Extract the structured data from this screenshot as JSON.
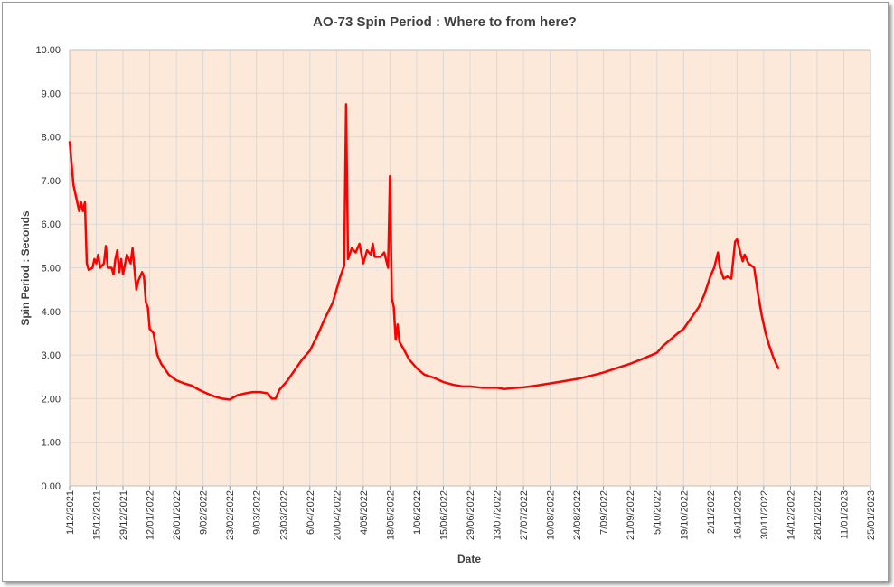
{
  "chart_data": {
    "type": "line",
    "title": "AO-73 Spin Period : Where to from here?",
    "xlabel": "Date",
    "ylabel": "Spin Period : Seconds",
    "x": [
      "1/12/2021",
      "3/12/2021",
      "5/12/2021",
      "6/12/2021",
      "7/12/2021",
      "8/12/2021",
      "9/12/2021",
      "10/12/2021",
      "11/12/2021",
      "13/12/2021",
      "14/12/2021",
      "15/12/2021",
      "16/12/2021",
      "17/12/2021",
      "19/12/2021",
      "20/12/2021",
      "21/12/2021",
      "23/12/2021",
      "24/12/2021",
      "25/12/2021",
      "26/12/2021",
      "27/12/2021",
      "28/12/2021",
      "29/12/2021",
      "31/12/2021",
      "2/01/2022",
      "3/01/2022",
      "5/01/2022",
      "6/01/2022",
      "8/01/2022",
      "9/01/2022",
      "10/01/2022",
      "11/01/2022",
      "12/01/2022",
      "14/01/2022",
      "16/01/2022",
      "18/01/2022",
      "22/01/2022",
      "26/01/2022",
      "30/01/2022",
      "3/02/2022",
      "7/02/2022",
      "11/02/2022",
      "15/02/2022",
      "19/02/2022",
      "23/02/2022",
      "27/02/2022",
      "3/03/2022",
      "7/03/2022",
      "11/03/2022",
      "15/03/2022",
      "17/03/2022",
      "19/03/2022",
      "21/03/2022",
      "25/03/2022",
      "29/03/2022",
      "2/04/2022",
      "6/04/2022",
      "10/04/2022",
      "14/04/2022",
      "18/04/2022",
      "20/04/2022",
      "22/04/2022",
      "24/04/2022",
      "25/04/2022",
      "26/04/2022",
      "28/04/2022",
      "30/04/2022",
      "2/05/2022",
      "4/05/2022",
      "6/05/2022",
      "8/05/2022",
      "9/05/2022",
      "10/05/2022",
      "13/05/2022",
      "15/05/2022",
      "17/05/2022",
      "18/05/2022",
      "19/05/2022",
      "20/05/2022",
      "21/05/2022",
      "22/05/2022",
      "23/05/2022",
      "25/05/2022",
      "28/05/2022",
      "1/06/2022",
      "5/06/2022",
      "10/06/2022",
      "15/06/2022",
      "20/06/2022",
      "25/06/2022",
      "29/06/2022",
      "5/07/2022",
      "13/07/2022",
      "17/07/2022",
      "21/07/2022",
      "27/07/2022",
      "3/08/2022",
      "10/08/2022",
      "17/08/2022",
      "24/08/2022",
      "31/08/2022",
      "7/09/2022",
      "14/09/2022",
      "21/09/2022",
      "28/09/2022",
      "5/10/2022",
      "8/10/2022",
      "12/10/2022",
      "16/10/2022",
      "19/10/2022",
      "23/10/2022",
      "27/10/2022",
      "30/10/2022",
      "2/11/2022",
      "4/11/2022",
      "6/11/2022",
      "7/11/2022",
      "9/11/2022",
      "11/11/2022",
      "13/11/2022",
      "15/11/2022",
      "16/11/2022",
      "18/11/2022",
      "19/11/2022",
      "20/11/2022",
      "22/11/2022",
      "25/11/2022",
      "27/11/2022",
      "29/11/2022",
      "1/12/2022",
      "3/12/2022",
      "5/12/2022",
      "7/12/2022",
      "8/12/2022"
    ],
    "series": [
      {
        "color": "#ff0000",
        "values": [
          7.9,
          6.9,
          6.5,
          6.3,
          6.5,
          6.3,
          6.5,
          5.1,
          4.95,
          5.0,
          5.2,
          5.1,
          5.3,
          5.0,
          5.1,
          5.5,
          5.0,
          5.0,
          4.85,
          5.2,
          5.4,
          4.9,
          5.2,
          4.85,
          5.3,
          5.1,
          5.45,
          4.5,
          4.7,
          4.9,
          4.8,
          4.2,
          4.1,
          3.6,
          3.5,
          3.0,
          2.8,
          2.55,
          2.42,
          2.35,
          2.3,
          2.2,
          2.12,
          2.05,
          2.0,
          1.98,
          2.08,
          2.12,
          2.15,
          2.15,
          2.12,
          2.0,
          2.0,
          2.2,
          2.4,
          2.65,
          2.9,
          3.1,
          3.45,
          3.85,
          4.2,
          4.5,
          4.8,
          5.05,
          8.75,
          5.2,
          5.45,
          5.35,
          5.55,
          5.1,
          5.4,
          5.3,
          5.55,
          5.25,
          5.25,
          5.35,
          5.0,
          7.1,
          4.3,
          4.1,
          3.35,
          3.7,
          3.3,
          3.15,
          2.9,
          2.7,
          2.55,
          2.48,
          2.38,
          2.32,
          2.28,
          2.28,
          2.25,
          2.25,
          2.22,
          2.24,
          2.26,
          2.3,
          2.35,
          2.4,
          2.45,
          2.52,
          2.6,
          2.7,
          2.8,
          2.92,
          3.05,
          3.2,
          3.35,
          3.5,
          3.6,
          3.85,
          4.1,
          4.4,
          4.8,
          5.0,
          5.35,
          5.0,
          4.75,
          4.8,
          4.75,
          5.6,
          5.65,
          5.3,
          5.15,
          5.3,
          5.1,
          5.0,
          4.4,
          3.9,
          3.5,
          3.2,
          2.95,
          2.75,
          2.68
        ]
      }
    ],
    "xlim": [
      "1/12/2021",
      "25/01/2023"
    ],
    "xticks": [
      "1/12/2021",
      "15/12/2021",
      "29/12/2021",
      "12/01/2022",
      "26/01/2022",
      "9/02/2022",
      "23/02/2022",
      "9/03/2022",
      "23/03/2022",
      "6/04/2022",
      "20/04/2022",
      "4/05/2022",
      "18/05/2022",
      "1/06/2022",
      "15/06/2022",
      "29/06/2022",
      "13/07/2022",
      "27/07/2022",
      "10/08/2022",
      "24/08/2022",
      "7/09/2022",
      "21/09/2022",
      "5/10/2022",
      "19/10/2022",
      "2/11/2022",
      "16/11/2022",
      "30/11/2022",
      "14/12/2022",
      "28/12/2022",
      "11/01/2023",
      "25/01/2023"
    ],
    "ylim": [
      0,
      10
    ],
    "yticks": [
      {
        "value": 0,
        "label": "0.00"
      },
      {
        "value": 1,
        "label": "1.00"
      },
      {
        "value": 2,
        "label": "2.00"
      },
      {
        "value": 3,
        "label": "3.00"
      },
      {
        "value": 4,
        "label": "4.00"
      },
      {
        "value": 5,
        "label": "5.00"
      },
      {
        "value": 6,
        "label": "6.00"
      },
      {
        "value": 7,
        "label": "7.00"
      },
      {
        "value": 8,
        "label": "8.00"
      },
      {
        "value": 9,
        "label": "9.00"
      },
      {
        "value": 10,
        "label": "10.00"
      }
    ],
    "grid": true
  }
}
